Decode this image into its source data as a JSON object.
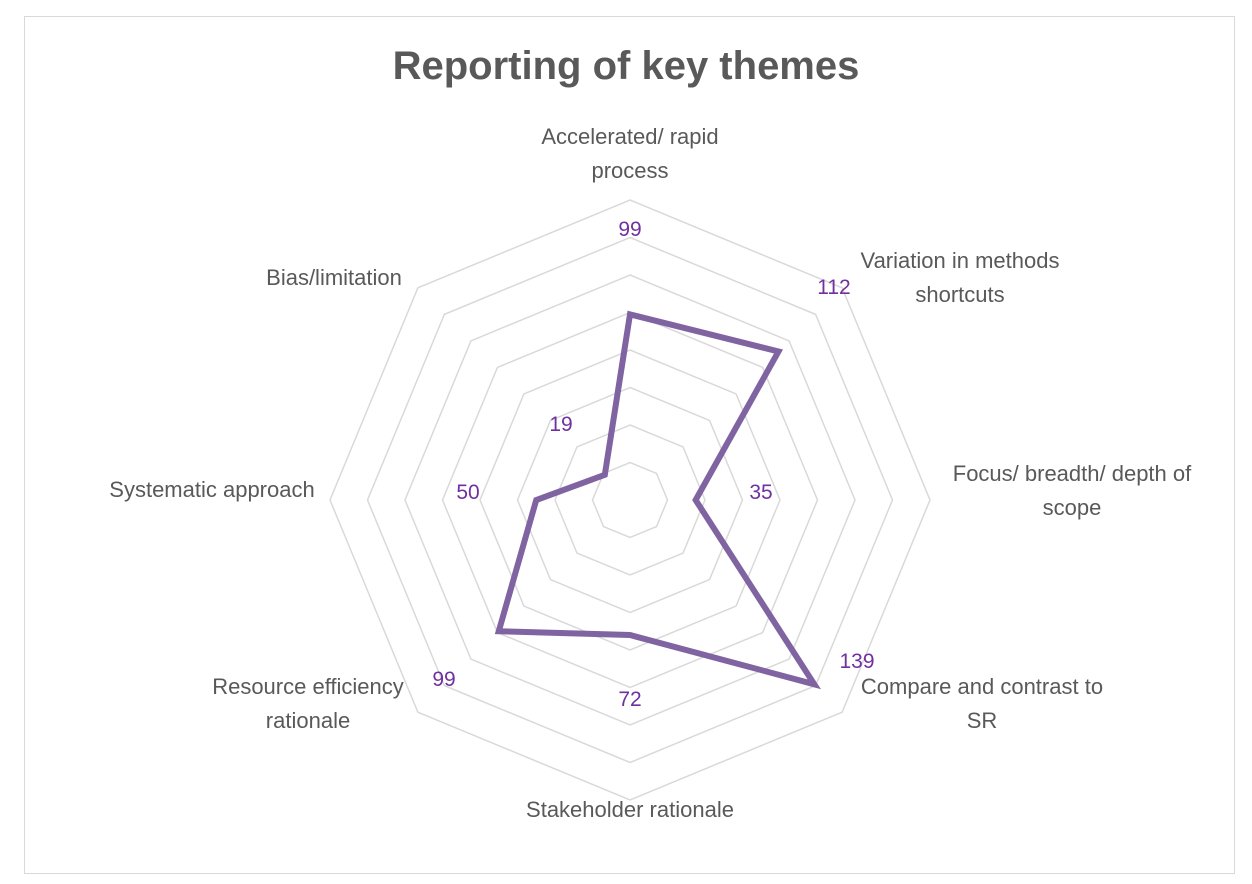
{
  "chart_data": {
    "type": "radar",
    "title": "Reporting of key themes",
    "categories": [
      "Accelerated/ rapid process",
      "Variation in methods shortcuts",
      "Focus/ breadth/ depth of scope",
      "Compare and contrast to SR",
      "Stakeholder rationale",
      "Resource efficiency rationale",
      "Systematic approach",
      "Bias/limitation"
    ],
    "series": [
      {
        "values": [
          99,
          112,
          35,
          139,
          72,
          99,
          50,
          19
        ],
        "color": "#8064a2"
      }
    ],
    "rmax": 160,
    "rings": 8,
    "grid": true,
    "legend": "none",
    "value_label_color": "#7030a0",
    "gridline_color": "#d9d9d9"
  }
}
